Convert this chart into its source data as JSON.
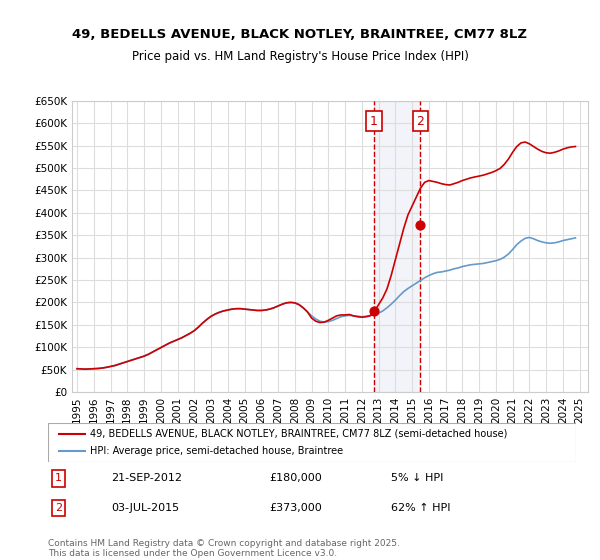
{
  "title": "49, BEDELLS AVENUE, BLACK NOTLEY, BRAINTREE, CM77 8LZ",
  "subtitle": "Price paid vs. HM Land Registry's House Price Index (HPI)",
  "hpi_label": "HPI: Average price, semi-detached house, Braintree",
  "property_label": "49, BEDELLS AVENUE, BLACK NOTLEY, BRAINTREE, CM77 8LZ (semi-detached house)",
  "property_color": "#cc0000",
  "hpi_color": "#6699cc",
  "background_color": "#ffffff",
  "grid_color": "#dddddd",
  "ylim": [
    0,
    650000
  ],
  "xlim_start": 1995.0,
  "xlim_end": 2025.5,
  "ytick_values": [
    0,
    50000,
    100000,
    150000,
    200000,
    250000,
    300000,
    350000,
    400000,
    450000,
    500000,
    550000,
    600000,
    650000
  ],
  "ytick_labels": [
    "£0",
    "£50K",
    "£100K",
    "£150K",
    "£200K",
    "£250K",
    "£300K",
    "£350K",
    "£400K",
    "£450K",
    "£500K",
    "£550K",
    "£600K",
    "£650K"
  ],
  "xtick_values": [
    1995,
    1996,
    1997,
    1998,
    1999,
    2000,
    2001,
    2002,
    2003,
    2004,
    2005,
    2006,
    2007,
    2008,
    2009,
    2010,
    2011,
    2012,
    2013,
    2014,
    2015,
    2016,
    2017,
    2018,
    2019,
    2020,
    2021,
    2022,
    2023,
    2024,
    2025
  ],
  "transaction1_date": 2012.72,
  "transaction1_price": 180000,
  "transaction1_label": "1",
  "transaction1_info": "21-SEP-2012    £180,000    5% ↓ HPI",
  "transaction2_date": 2015.5,
  "transaction2_price": 373000,
  "transaction2_label": "2",
  "transaction2_info": "03-JUL-2015    £373,000    62% ↑ HPI",
  "footer": "Contains HM Land Registry data © Crown copyright and database right 2025.\nThis data is licensed under the Open Government Licence v3.0.",
  "hpi_data_x": [
    1995.0,
    1995.25,
    1995.5,
    1995.75,
    1996.0,
    1996.25,
    1996.5,
    1996.75,
    1997.0,
    1997.25,
    1997.5,
    1997.75,
    1998.0,
    1998.25,
    1998.5,
    1998.75,
    1999.0,
    1999.25,
    1999.5,
    1999.75,
    2000.0,
    2000.25,
    2000.5,
    2000.75,
    2001.0,
    2001.25,
    2001.5,
    2001.75,
    2002.0,
    2002.25,
    2002.5,
    2002.75,
    2003.0,
    2003.25,
    2003.5,
    2003.75,
    2004.0,
    2004.25,
    2004.5,
    2004.75,
    2005.0,
    2005.25,
    2005.5,
    2005.75,
    2006.0,
    2006.25,
    2006.5,
    2006.75,
    2007.0,
    2007.25,
    2007.5,
    2007.75,
    2008.0,
    2008.25,
    2008.5,
    2008.75,
    2009.0,
    2009.25,
    2009.5,
    2009.75,
    2010.0,
    2010.25,
    2010.5,
    2010.75,
    2011.0,
    2011.25,
    2011.5,
    2011.75,
    2012.0,
    2012.25,
    2012.5,
    2012.75,
    2013.0,
    2013.25,
    2013.5,
    2013.75,
    2014.0,
    2014.25,
    2014.5,
    2014.75,
    2015.0,
    2015.25,
    2015.5,
    2015.75,
    2016.0,
    2016.25,
    2016.5,
    2016.75,
    2017.0,
    2017.25,
    2017.5,
    2017.75,
    2018.0,
    2018.25,
    2018.5,
    2018.75,
    2019.0,
    2019.25,
    2019.5,
    2019.75,
    2020.0,
    2020.25,
    2020.5,
    2020.75,
    2021.0,
    2021.25,
    2021.5,
    2021.75,
    2022.0,
    2022.25,
    2022.5,
    2022.75,
    2023.0,
    2023.25,
    2023.5,
    2023.75,
    2024.0,
    2024.25,
    2024.5,
    2024.75
  ],
  "hpi_data_y": [
    52000,
    51500,
    51000,
    51500,
    52000,
    52500,
    53500,
    55000,
    57000,
    59000,
    62000,
    65000,
    68000,
    71000,
    74000,
    77000,
    80000,
    84000,
    89000,
    94000,
    99000,
    104000,
    109000,
    113000,
    117000,
    121000,
    126000,
    131000,
    137000,
    145000,
    154000,
    162000,
    169000,
    174000,
    178000,
    181000,
    183000,
    185000,
    186000,
    186000,
    185000,
    184000,
    183000,
    182000,
    182000,
    183000,
    185000,
    188000,
    192000,
    196000,
    199000,
    200000,
    199000,
    195000,
    188000,
    179000,
    170000,
    163000,
    158000,
    156000,
    157000,
    160000,
    164000,
    168000,
    170000,
    171000,
    170000,
    169000,
    168000,
    169000,
    171000,
    173000,
    176000,
    181000,
    188000,
    196000,
    205000,
    215000,
    224000,
    231000,
    237000,
    243000,
    249000,
    255000,
    260000,
    264000,
    267000,
    268000,
    270000,
    272000,
    275000,
    277000,
    280000,
    282000,
    284000,
    285000,
    286000,
    287000,
    289000,
    291000,
    293000,
    296000,
    301000,
    308000,
    318000,
    329000,
    337000,
    343000,
    345000,
    342000,
    338000,
    335000,
    333000,
    332000,
    333000,
    335000,
    338000,
    340000,
    342000,
    344000
  ],
  "property_data_x": [
    1995.0,
    1995.25,
    1995.5,
    1995.75,
    1996.0,
    1996.25,
    1996.5,
    1996.75,
    1997.0,
    1997.25,
    1997.5,
    1997.75,
    1998.0,
    1998.25,
    1998.5,
    1998.75,
    1999.0,
    1999.25,
    1999.5,
    1999.75,
    2000.0,
    2000.25,
    2000.5,
    2000.75,
    2001.0,
    2001.25,
    2001.5,
    2001.75,
    2002.0,
    2002.25,
    2002.5,
    2002.75,
    2003.0,
    2003.25,
    2003.5,
    2003.75,
    2004.0,
    2004.25,
    2004.5,
    2004.75,
    2005.0,
    2005.25,
    2005.5,
    2005.75,
    2006.0,
    2006.25,
    2006.5,
    2006.75,
    2007.0,
    2007.25,
    2007.5,
    2007.75,
    2008.0,
    2008.25,
    2008.5,
    2008.75,
    2009.0,
    2009.25,
    2009.5,
    2009.75,
    2010.0,
    2010.25,
    2010.5,
    2010.75,
    2011.0,
    2011.25,
    2011.5,
    2011.75,
    2012.0,
    2012.25,
    2012.5,
    2012.75,
    2013.0,
    2013.25,
    2013.5,
    2013.75,
    2014.0,
    2014.25,
    2014.5,
    2014.75,
    2015.0,
    2015.25,
    2015.5,
    2015.75,
    2016.0,
    2016.25,
    2016.5,
    2016.75,
    2017.0,
    2017.25,
    2017.5,
    2017.75,
    2018.0,
    2018.25,
    2018.5,
    2018.75,
    2019.0,
    2019.25,
    2019.5,
    2019.75,
    2020.0,
    2020.25,
    2020.5,
    2020.75,
    2021.0,
    2021.25,
    2021.5,
    2021.75,
    2022.0,
    2022.25,
    2022.5,
    2022.75,
    2023.0,
    2023.25,
    2023.5,
    2023.75,
    2024.0,
    2024.25,
    2024.5,
    2024.75
  ],
  "property_data_y": [
    52000,
    51500,
    51000,
    51500,
    52000,
    52500,
    53500,
    55000,
    57000,
    59000,
    62000,
    65000,
    68000,
    71000,
    74000,
    77000,
    80000,
    84000,
    89000,
    94000,
    99000,
    104000,
    109000,
    113000,
    117000,
    121000,
    126000,
    131000,
    137000,
    145000,
    154000,
    162000,
    169000,
    174000,
    178000,
    181000,
    183000,
    185000,
    186000,
    186000,
    185000,
    184000,
    183000,
    182000,
    182000,
    183000,
    185000,
    188000,
    192000,
    196000,
    199000,
    200000,
    199000,
    195000,
    188000,
    179000,
    165000,
    158000,
    155000,
    156000,
    160000,
    165000,
    170000,
    172000,
    172000,
    173000,
    170000,
    168000,
    167000,
    168000,
    170000,
    180000,
    195000,
    210000,
    230000,
    260000,
    295000,
    330000,
    365000,
    395000,
    415000,
    435000,
    455000,
    468000,
    472000,
    470000,
    468000,
    465000,
    463000,
    462000,
    465000,
    468000,
    472000,
    475000,
    478000,
    480000,
    482000,
    484000,
    487000,
    490000,
    494000,
    499000,
    508000,
    520000,
    535000,
    548000,
    556000,
    558000,
    554000,
    548000,
    542000,
    537000,
    534000,
    533000,
    535000,
    538000,
    542000,
    545000,
    547000,
    548000
  ]
}
